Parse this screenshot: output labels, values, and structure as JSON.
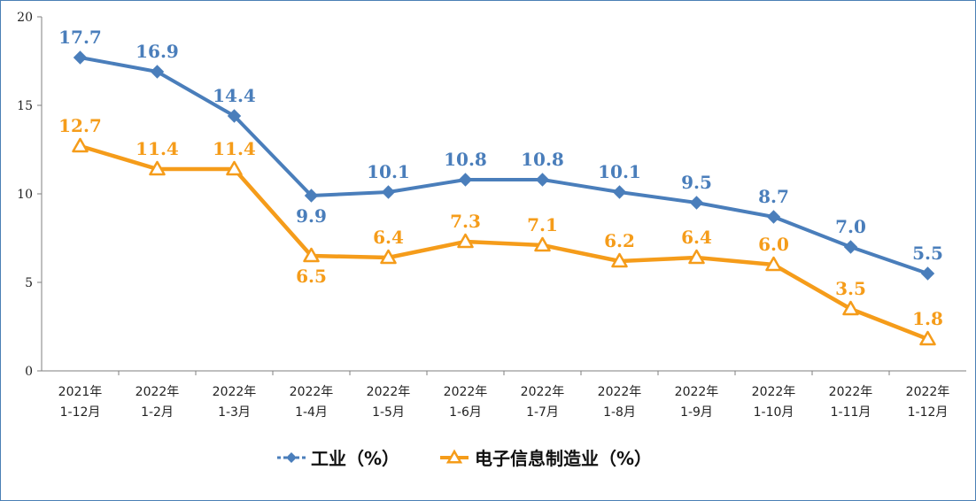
{
  "chart_data": {
    "type": "line",
    "title": "",
    "xlabel": "",
    "ylabel": "",
    "ylim": [
      0,
      20
    ],
    "yticks": [
      0,
      5,
      10,
      15,
      20
    ],
    "grid": false,
    "legend_position": "bottom",
    "categories": [
      [
        "2021年",
        "1-12月"
      ],
      [
        "2022年",
        "1-2月"
      ],
      [
        "2022年",
        "1-3月"
      ],
      [
        "2022年",
        "1-4月"
      ],
      [
        "2022年",
        "1-5月"
      ],
      [
        "2022年",
        "1-6月"
      ],
      [
        "2022年",
        "1-7月"
      ],
      [
        "2022年",
        "1-8月"
      ],
      [
        "2022年",
        "1-9月"
      ],
      [
        "2022年",
        "1-10月"
      ],
      [
        "2022年",
        "1-11月"
      ],
      [
        "2022年",
        "1-12月"
      ]
    ],
    "series": [
      {
        "name": "工业（%）",
        "color": "#4a7ebb",
        "marker": "diamond",
        "values": [
          17.7,
          16.9,
          14.4,
          9.9,
          10.1,
          10.8,
          10.8,
          10.1,
          9.5,
          8.7,
          7.0,
          5.5
        ],
        "labels": [
          "17.7",
          "16.9",
          "14.4",
          "9.9",
          "10.1",
          "10.8",
          "10.8",
          "10.1",
          "9.5",
          "8.7",
          "7.0",
          "5.5"
        ],
        "label_positions": [
          "above",
          "above",
          "above",
          "below",
          "above",
          "above",
          "above",
          "above",
          "above",
          "above",
          "above",
          "above"
        ]
      },
      {
        "name": "电子信息制造业（%）",
        "color": "#f59c1a",
        "marker": "triangle",
        "values": [
          12.7,
          11.4,
          11.4,
          6.5,
          6.4,
          7.3,
          7.1,
          6.2,
          6.4,
          6.0,
          3.5,
          1.8
        ],
        "labels": [
          "12.7",
          "11.4",
          "11.4",
          "6.5",
          "6.4",
          "7.3",
          "7.1",
          "6.2",
          "6.4",
          "6.0",
          "3.5",
          "1.8"
        ],
        "label_positions": [
          "above",
          "above",
          "above",
          "below",
          "above",
          "above",
          "above",
          "above",
          "above",
          "above",
          "above",
          "above"
        ]
      }
    ]
  }
}
